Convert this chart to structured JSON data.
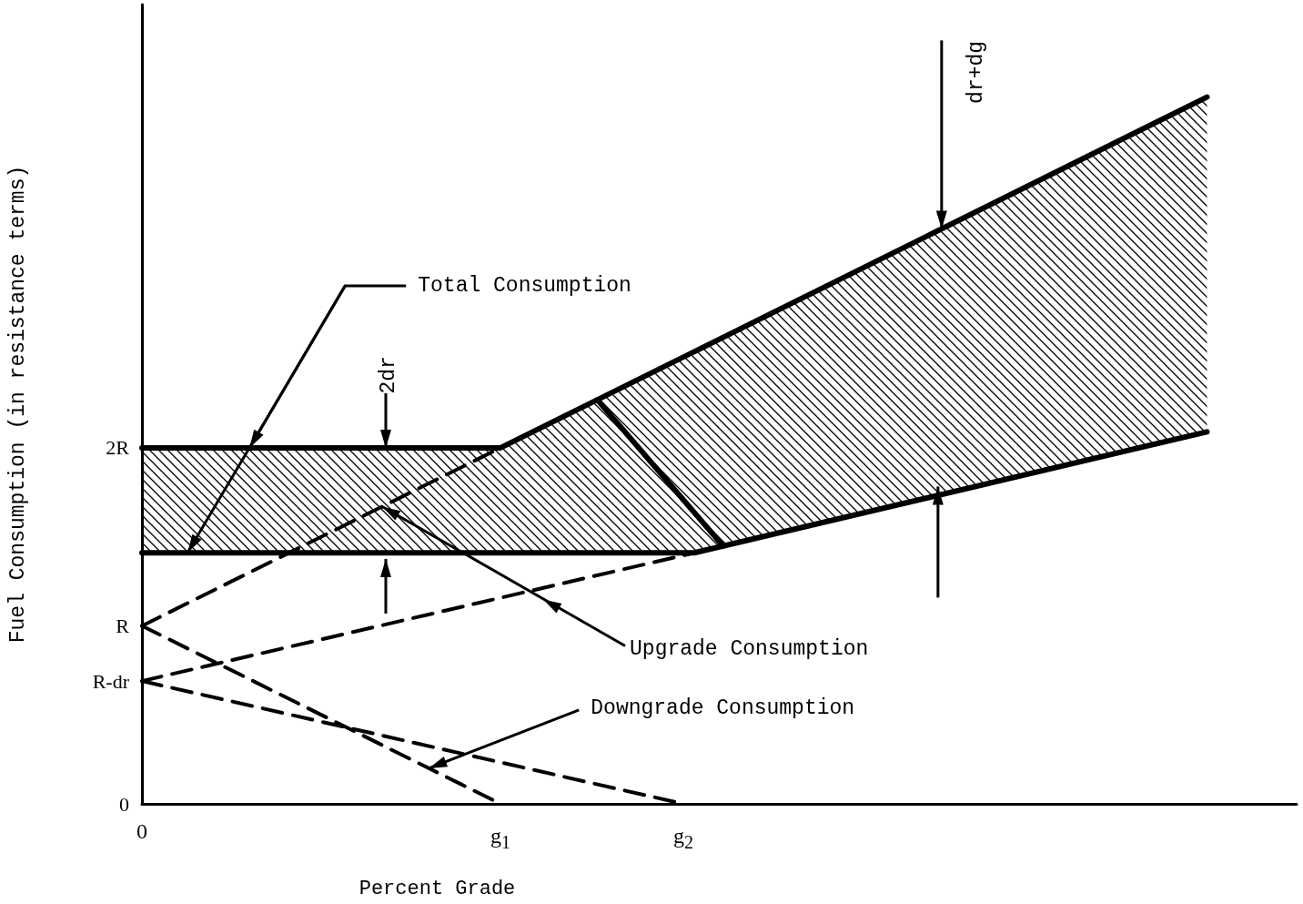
{
  "chart_data": {
    "type": "line",
    "xlabel": "Percent Grade",
    "ylabel": "Fuel Consumption (in resistance terms)",
    "xlim": [
      0,
      3.22
    ],
    "ylim": [
      0,
      4.49
    ],
    "xticks": [
      0,
      {
        "value": 1,
        "label": "g$_{1}$"
      },
      {
        "value": 1.51,
        "label": "g$_{2}$"
      }
    ],
    "yticks": [
      0,
      {
        "value": 0.69,
        "label": "R-dr"
      },
      {
        "value": 1,
        "label": "R"
      },
      {
        "value": 2,
        "label": "2R"
      }
    ],
    "grid": false,
    "marker": "none",
    "series": [
      {
        "color": "#000000",
        "line_style": "solid",
        "x": [
          0,
          1,
          1.54,
          2.97
        ],
        "values": [
          2,
          2,
          2.54,
          3.97
        ],
        "lower": [
          1.41,
          1.41,
          1.41,
          2.09
        ],
        "upper": [
          2,
          2,
          2.54,
          3.97
        ]
      },
      {
        "color": "#000000",
        "line_style": "solid",
        "x": [
          0,
          1.54,
          2.97
        ],
        "values": [
          1.41,
          1.41,
          2.09
        ]
      },
      {
        "color": "#000000",
        "line_style": "dashed",
        "x": [
          0,
          1
        ],
        "values": [
          1,
          2
        ]
      },
      {
        "color": "#000000",
        "line_style": "dashed",
        "x": [
          0,
          1.54
        ],
        "values": [
          0.69,
          1.41
        ]
      },
      {
        "color": "#000000",
        "line_style": "dashed",
        "x": [
          0,
          1
        ],
        "values": [
          1,
          0
        ]
      },
      {
        "color": "#000000",
        "line_style": "dashed",
        "x": [
          0,
          1.51
        ],
        "values": [
          0.69,
          0
        ]
      },
      {
        "color": "#000000",
        "line_style": "solid",
        "x": [
          1.27,
          1.62
        ],
        "values": [
          2.27,
          1.45
        ]
      }
    ],
    "annotations": [
      {
        "text": "Total Consumption",
        "x": 0.3,
        "y": 2
      },
      {
        "text": "2dr",
        "x": 0.68,
        "y": 2
      },
      {
        "text": "Upgrade Consumption",
        "x": 0.67,
        "y": 1.67
      },
      {
        "text": "Downgrade Consumption",
        "x": 0.8,
        "y": 0.2
      },
      {
        "text": "dr+dg",
        "x": 2.23,
        "y": 3.23
      }
    ]
  }
}
